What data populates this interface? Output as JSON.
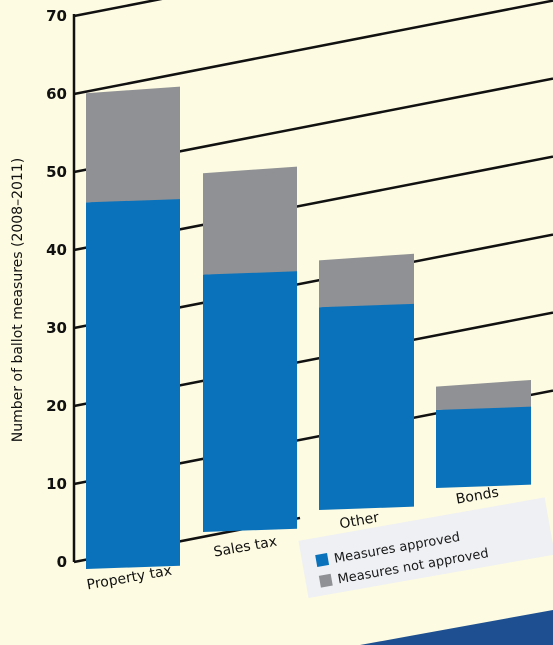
{
  "chart_data": {
    "type": "bar",
    "stacked": true,
    "categories": [
      "Property tax",
      "Sales tax",
      "Other",
      "Bonds"
    ],
    "series": [
      {
        "name": "Measures approved",
        "values": [
          47,
          33,
          26,
          10
        ],
        "color": "#0a72bb"
      },
      {
        "name": "Measures not approved",
        "values": [
          14,
          13,
          6,
          3
        ],
        "color": "#8f9194"
      }
    ],
    "ylabel": "Number of ballot measures (2008–2011)",
    "yticks": [
      0,
      10,
      20,
      30,
      40,
      50,
      60,
      70
    ],
    "ylim": [
      0,
      70
    ],
    "grid": true,
    "legend": "bottom-right",
    "colors": {
      "background": "#fdfbe1",
      "legend_box": "#eef0f4",
      "accent": "#1e4f91"
    }
  }
}
